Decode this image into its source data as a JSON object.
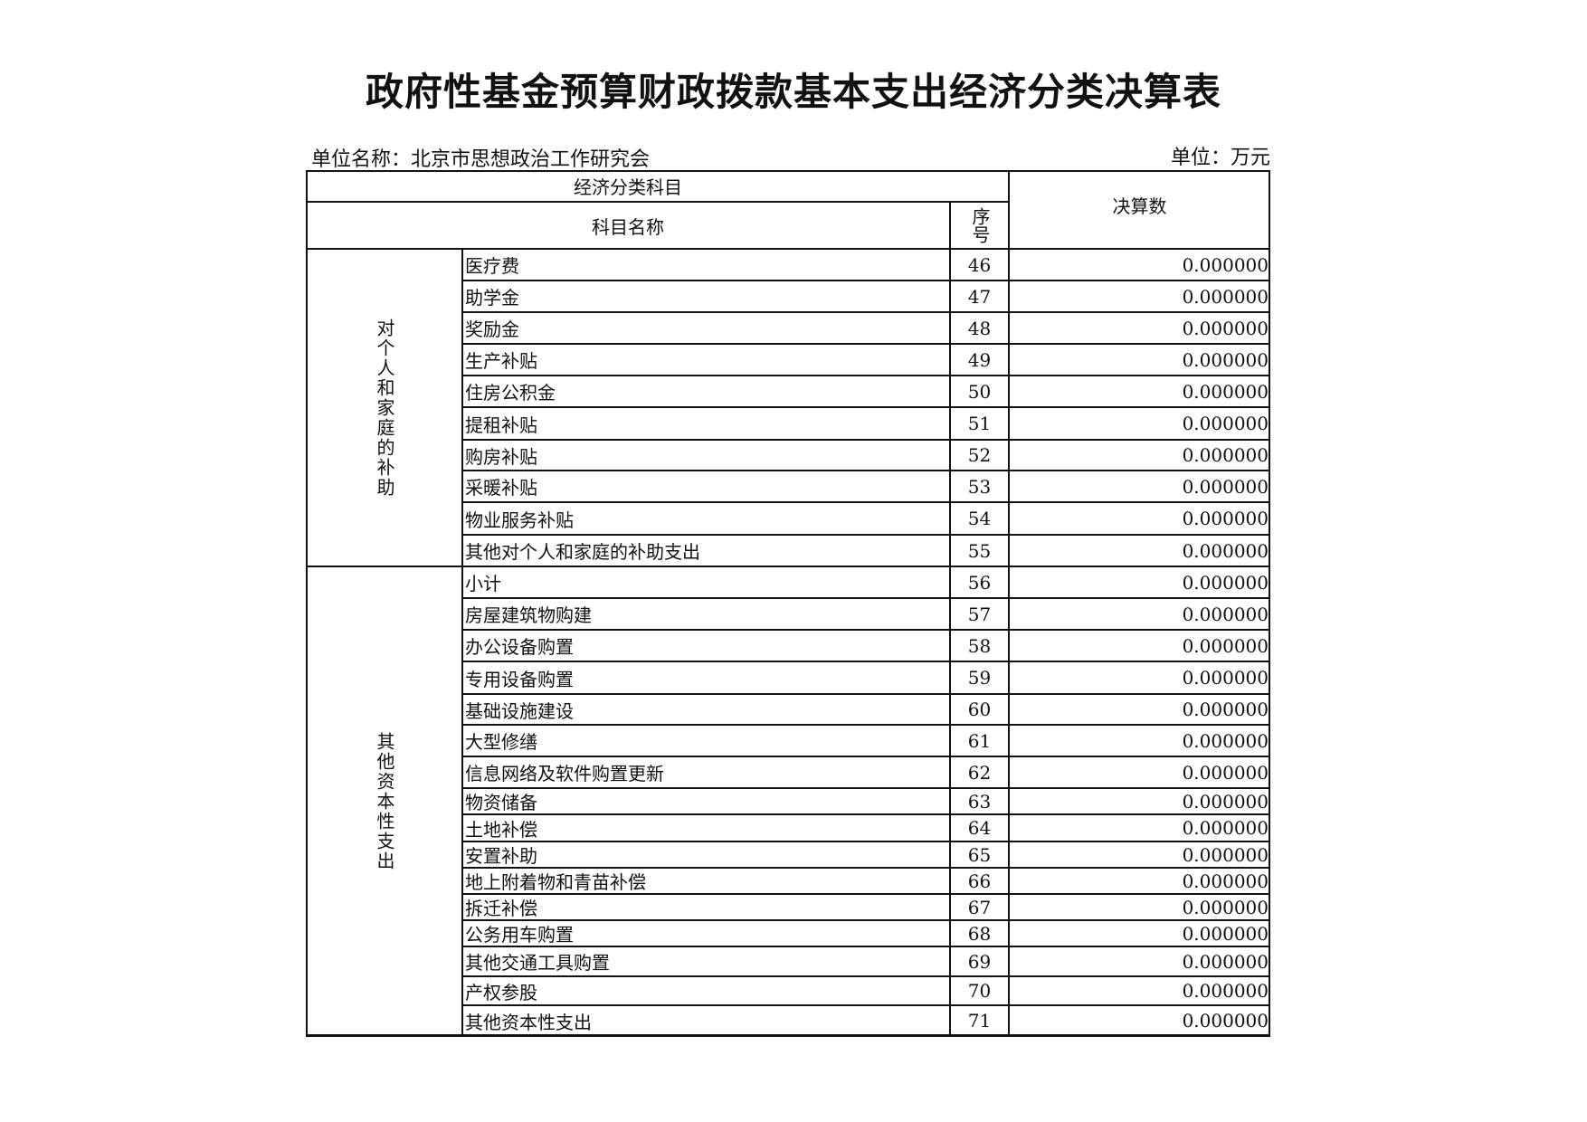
{
  "title": "政府性基金预算财政拨款基本支出经济分类决算表",
  "unit_name": "单位名称：北京市思想政治工作研究会",
  "unit": "单位：万元",
  "header": {
    "group": "经济分类科目",
    "name": "科目名称",
    "seq": "序号",
    "amount": "决算数"
  },
  "groups": [
    {
      "label": "对个人和家庭的补助",
      "rows": [
        {
          "name": "医疗费",
          "seq": "46",
          "amount": "0.000000"
        },
        {
          "name": "助学金",
          "seq": "47",
          "amount": "0.000000"
        },
        {
          "name": "奖励金",
          "seq": "48",
          "amount": "0.000000"
        },
        {
          "name": "生产补贴",
          "seq": "49",
          "amount": "0.000000"
        },
        {
          "name": "住房公积金",
          "seq": "50",
          "amount": "0.000000"
        },
        {
          "name": "提租补贴",
          "seq": "51",
          "amount": "0.000000"
        },
        {
          "name": "购房补贴",
          "seq": "52",
          "amount": "0.000000"
        },
        {
          "name": "采暖补贴",
          "seq": "53",
          "amount": "0.000000"
        },
        {
          "name": "物业服务补贴",
          "seq": "54",
          "amount": "0.000000"
        },
        {
          "name": "其他对个人和家庭的补助支出",
          "seq": "55",
          "amount": "0.000000"
        }
      ]
    },
    {
      "label": "其他资本性支出",
      "rows": [
        {
          "name": "小计",
          "seq": "56",
          "amount": "0.000000"
        },
        {
          "name": "房屋建筑物购建",
          "seq": "57",
          "amount": "0.000000"
        },
        {
          "name": "办公设备购置",
          "seq": "58",
          "amount": "0.000000"
        },
        {
          "name": "专用设备购置",
          "seq": "59",
          "amount": "0.000000"
        },
        {
          "name": "基础设施建设",
          "seq": "60",
          "amount": "0.000000"
        },
        {
          "name": "大型修缮",
          "seq": "61",
          "amount": "0.000000"
        },
        {
          "name": "信息网络及软件购置更新",
          "seq": "62",
          "amount": "0.000000"
        },
        {
          "name": "物资储备",
          "seq": "63",
          "amount": "0.000000"
        },
        {
          "name": "土地补偿",
          "seq": "64",
          "amount": "0.000000"
        },
        {
          "name": "安置补助",
          "seq": "65",
          "amount": "0.000000"
        },
        {
          "name": "地上附着物和青苗补偿",
          "seq": "66",
          "amount": "0.000000"
        },
        {
          "name": "拆迁补偿",
          "seq": "67",
          "amount": "0.000000"
        },
        {
          "name": "公务用车购置",
          "seq": "68",
          "amount": "0.000000"
        },
        {
          "name": "其他交通工具购置",
          "seq": "69",
          "amount": "0.000000"
        },
        {
          "name": "产权参股",
          "seq": "70",
          "amount": "0.000000"
        },
        {
          "name": "其他资本性支出",
          "seq": "71",
          "amount": "0.000000"
        }
      ]
    }
  ]
}
